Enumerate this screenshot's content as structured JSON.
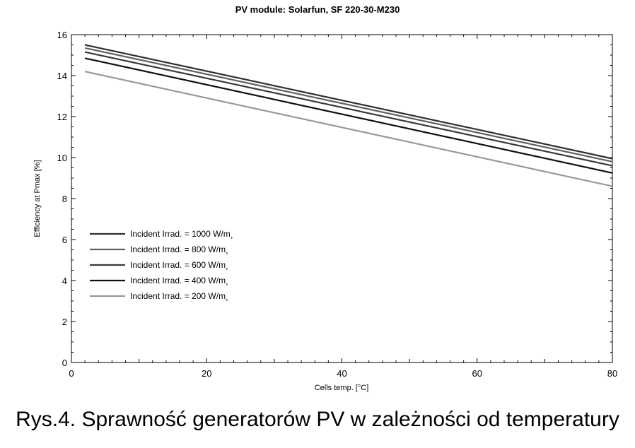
{
  "chart_data": {
    "type": "line",
    "title": "PV module:  Solarfun,  SF 220-30-M230",
    "xlabel": "Cells temp.  [°C]",
    "ylabel": "Efficiency at Pmax [%]",
    "xlim": [
      0,
      80
    ],
    "ylim": [
      0,
      16
    ],
    "xticks": [
      0,
      20,
      40,
      60,
      80
    ],
    "yticks": [
      0,
      2,
      4,
      6,
      8,
      10,
      12,
      14,
      16
    ],
    "grid": false,
    "legend_position": "lower-left",
    "series": [
      {
        "name": "Incident Irrad. = 1000 W/m¸",
        "color": "#303030",
        "x": [
          2,
          80
        ],
        "y": [
          15.5,
          9.95
        ]
      },
      {
        "name": "Incident Irrad. = 800 W/m¸",
        "color": "#606060",
        "x": [
          2,
          80
        ],
        "y": [
          15.35,
          9.8
        ]
      },
      {
        "name": "Incident Irrad. = 600 W/m¸",
        "color": "#3a3a3a",
        "x": [
          2,
          80
        ],
        "y": [
          15.15,
          9.6
        ]
      },
      {
        "name": "Incident Irrad. = 400 W/m¸",
        "color": "#101010",
        "x": [
          2,
          80
        ],
        "y": [
          14.85,
          9.25
        ]
      },
      {
        "name": "Incident Irrad. = 200 W/m¸",
        "color": "#999999",
        "x": [
          2,
          80
        ],
        "y": [
          14.2,
          8.6
        ]
      }
    ]
  },
  "caption": "Rys.4. Sprawność generatorów PV w zależności od temperatury"
}
